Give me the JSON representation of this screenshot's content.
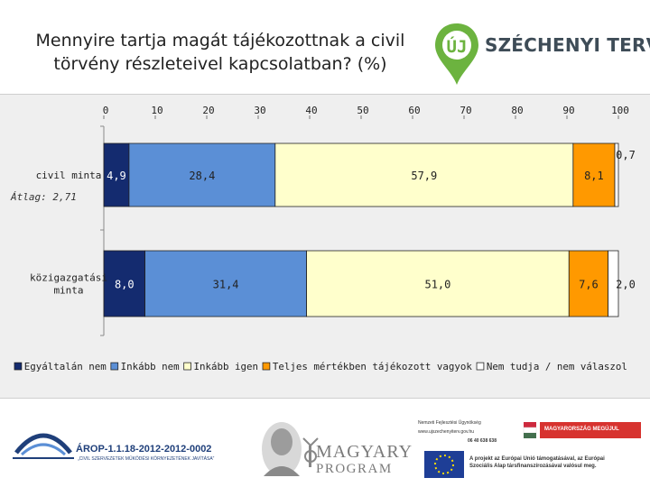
{
  "slide": {
    "title_line1": "Mennyire tartja magát tájékozottnak a civil",
    "title_line2": "törvény részleteivel kapcsolatban? (%)",
    "logo": {
      "badge": "ÚJ",
      "text": "SZÉCHENYI TERV",
      "color": "#6cb33f"
    },
    "annotation": "Átlag: 2,71"
  },
  "chart_data": {
    "type": "bar",
    "orientation": "horizontal",
    "stacked": true,
    "title": "Mennyire tartja magát tájékozottnak a civil törvény részleteivel kapcsolatban? (%)",
    "xlim": [
      0,
      100
    ],
    "x_ticks": [
      "0",
      "10",
      "20",
      "30",
      "40",
      "50",
      "60",
      "70",
      "80",
      "90",
      "100"
    ],
    "categories": [
      "civil minta",
      "közigazgatási minta"
    ],
    "category_label_lines": [
      [
        "civil minta"
      ],
      [
        "közigazgatási",
        "minta"
      ]
    ],
    "series": [
      {
        "name": "Egyáltalán nem",
        "color": "#142b6f",
        "values": [
          4.9,
          8.0
        ],
        "labels": [
          "4,9",
          "8,0"
        ]
      },
      {
        "name": "Inkább nem",
        "color": "#5b8fd6",
        "values": [
          28.4,
          31.4
        ],
        "labels": [
          "28,4",
          "31,4"
        ]
      },
      {
        "name": "Inkább igen",
        "color": "#ffffcc",
        "values": [
          57.9,
          51.0
        ],
        "labels": [
          "57,9",
          "51,0"
        ]
      },
      {
        "name": "Teljes mértékben tájékozott vagyok",
        "color": "#ff9900",
        "values": [
          8.1,
          7.6
        ],
        "labels": [
          "8,1",
          "7,6"
        ]
      },
      {
        "name": "Nem tudja / nem válaszol",
        "color": "#ffffff",
        "values": [
          0.7,
          2.0
        ],
        "labels": [
          "0,7",
          "2,0"
        ]
      }
    ],
    "legend_position": "bottom",
    "grid": false
  },
  "footer": {
    "arop_code": "ÁROP-1.1.18-2012-2012-0002",
    "arop_sub": "„CIVIL SZERVEZETEK MŰKÖDÉSI KÖRNYEZETÉNEK JAVÍTÁSA”",
    "magyary_line1": "MAGYARY",
    "magyary_line2": "PROGRAM",
    "ministry_line1": "Nemzeti Fejlesztési Ügynökség",
    "ministry_line2": "www.ujszechenyiterv.gov.hu",
    "ministry_line3": "06 40 638 638",
    "hungary_badge": "MAGYARORSZÁG MEGÚJUL",
    "eu_line1": "A projekt az Európai Unió támogatásával, az Európai",
    "eu_line2": "Szociális Alap társfinanszírozásával valósul meg."
  }
}
